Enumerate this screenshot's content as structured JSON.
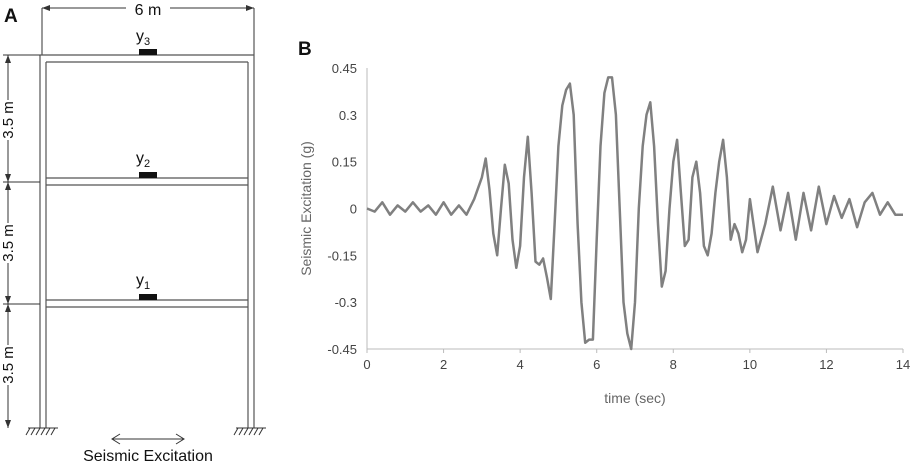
{
  "panel_a": {
    "label": "A",
    "width_dim": "6 m",
    "story_dims": [
      "3.5 m",
      "3.5 m",
      "3.5 m"
    ],
    "sensors": [
      {
        "name": "y",
        "sub": "3"
      },
      {
        "name": "y",
        "sub": "2"
      },
      {
        "name": "y",
        "sub": "1"
      }
    ],
    "excitation_label": "Seismic Excitation"
  },
  "panel_b": {
    "label": "B"
  },
  "chart_data": {
    "type": "line",
    "title": "",
    "xlabel": "time (sec)",
    "ylabel": "Seismic Excitation (g)",
    "xlim": [
      0,
      14
    ],
    "ylim": [
      -0.45,
      0.45
    ],
    "xticks": [
      "0",
      "2",
      "4",
      "6",
      "8",
      "10",
      "12",
      "14"
    ],
    "yticks": [
      "0.45",
      "0.3",
      "0.15",
      "0",
      "-0.15",
      "-0.3",
      "-0.45"
    ],
    "grid": false,
    "color": "#808080",
    "series": [
      {
        "x": [
          0,
          0.2,
          0.4,
          0.6,
          0.8,
          1.0,
          1.2,
          1.4,
          1.6,
          1.8,
          2.0,
          2.2,
          2.4,
          2.6,
          2.8,
          3.0,
          3.1,
          3.2,
          3.3,
          3.4,
          3.5,
          3.6,
          3.7,
          3.8,
          3.9,
          4.0,
          4.1,
          4.2,
          4.3,
          4.4,
          4.5,
          4.6,
          4.7,
          4.8,
          4.9,
          5.0,
          5.1,
          5.2,
          5.3,
          5.4,
          5.5,
          5.6,
          5.7,
          5.8,
          5.9,
          6.0,
          6.1,
          6.2,
          6.3,
          6.4,
          6.5,
          6.6,
          6.7,
          6.8,
          6.9,
          7.0,
          7.1,
          7.2,
          7.3,
          7.4,
          7.5,
          7.6,
          7.7,
          7.8,
          7.9,
          8.0,
          8.1,
          8.2,
          8.3,
          8.4,
          8.5,
          8.6,
          8.7,
          8.8,
          8.9,
          9.0,
          9.1,
          9.2,
          9.3,
          9.4,
          9.5,
          9.6,
          9.7,
          9.8,
          9.9,
          10.0,
          10.2,
          10.4,
          10.6,
          10.8,
          11.0,
          11.2,
          11.4,
          11.6,
          11.8,
          12.0,
          12.2,
          12.4,
          12.6,
          12.8,
          13.0,
          13.2,
          13.4,
          13.6,
          13.8,
          14.0
        ],
        "values": [
          0,
          -0.01,
          0.02,
          -0.02,
          0.01,
          -0.01,
          0.02,
          -0.01,
          0.01,
          -0.02,
          0.02,
          -0.02,
          0.01,
          -0.02,
          0.03,
          0.1,
          0.16,
          0.06,
          -0.08,
          -0.15,
          0.0,
          0.14,
          0.08,
          -0.1,
          -0.19,
          -0.12,
          0.1,
          0.23,
          0.05,
          -0.17,
          -0.18,
          -0.16,
          -0.22,
          -0.29,
          -0.05,
          0.2,
          0.33,
          0.38,
          0.4,
          0.3,
          -0.05,
          -0.3,
          -0.43,
          -0.42,
          -0.42,
          -0.1,
          0.2,
          0.37,
          0.42,
          0.42,
          0.3,
          0.0,
          -0.3,
          -0.4,
          -0.45,
          -0.3,
          0.0,
          0.2,
          0.3,
          0.34,
          0.2,
          -0.05,
          -0.25,
          -0.2,
          0.0,
          0.15,
          0.22,
          0.05,
          -0.12,
          -0.1,
          0.1,
          0.15,
          0.05,
          -0.12,
          -0.15,
          -0.08,
          0.05,
          0.15,
          0.22,
          0.1,
          -0.1,
          -0.05,
          -0.08,
          -0.14,
          -0.1,
          0.03,
          -0.14,
          -0.05,
          0.07,
          -0.07,
          0.05,
          -0.1,
          0.05,
          -0.07,
          0.07,
          -0.05,
          0.04,
          -0.03,
          0.03,
          -0.06,
          0.02,
          0.05,
          -0.02,
          0.02,
          -0.02,
          -0.02
        ]
      }
    ]
  }
}
